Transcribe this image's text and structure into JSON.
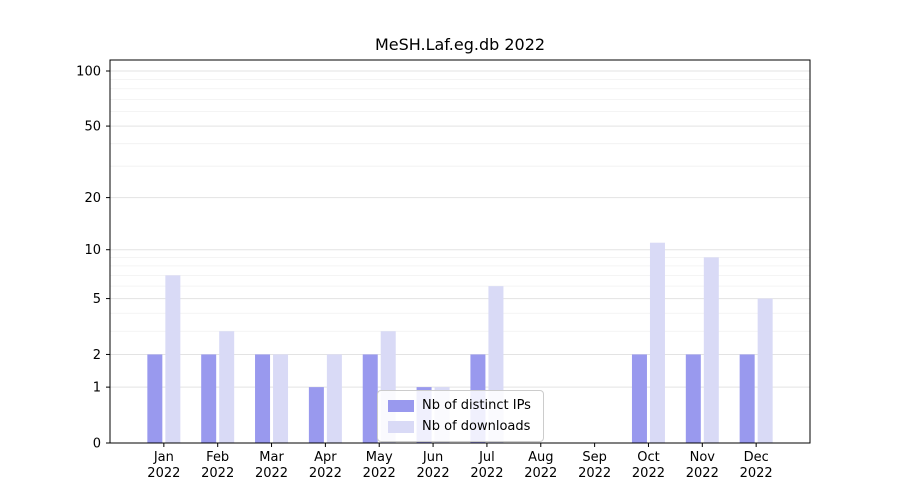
{
  "chart_data": {
    "type": "bar",
    "title": "MeSH.Laf.eg.db 2022",
    "categories": [
      "Jan 2022",
      "Feb 2022",
      "Mar 2022",
      "Apr 2022",
      "May 2022",
      "Jun 2022",
      "Jul 2022",
      "Aug 2022",
      "Sep 2022",
      "Oct 2022",
      "Nov 2022",
      "Dec 2022"
    ],
    "series": [
      {
        "name": "Nb of distinct IPs",
        "color": "#9999ee",
        "values": [
          2,
          2,
          2,
          1,
          2,
          1,
          2,
          0,
          0,
          2,
          2,
          2
        ]
      },
      {
        "name": "Nb of downloads",
        "color": "#d9daf6",
        "values": [
          7,
          3,
          2,
          2,
          3,
          1,
          6,
          0,
          0,
          11,
          9,
          5
        ]
      }
    ],
    "yticks": [
      0,
      1,
      2,
      5,
      10,
      20,
      50,
      100
    ],
    "minor_yticks": [
      3,
      4,
      6,
      7,
      8,
      9,
      30,
      40,
      60,
      70,
      80,
      90
    ],
    "scale": "log1p",
    "ylim": [
      0,
      100
    ],
    "grid": true,
    "legend_position": "lower center",
    "colors": {
      "axis": "#000000",
      "major_grid": "#e3e3e3",
      "minor_grid": "#f0f0f0",
      "background": "#ffffff"
    }
  }
}
